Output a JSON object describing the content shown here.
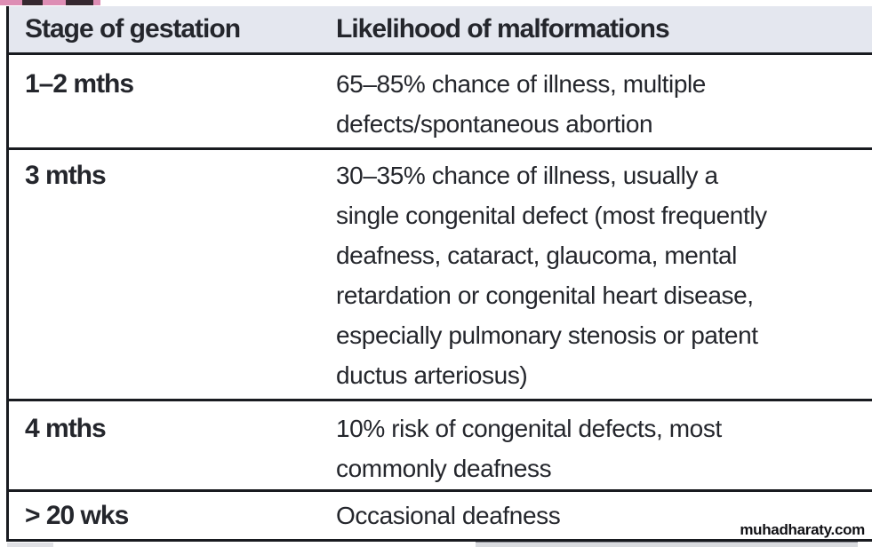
{
  "page": {
    "watermark": "muhadharaty.com"
  },
  "colors": {
    "header_bg": "#e4e7ef",
    "border": "#191b20",
    "text": "#24262c",
    "pink_strip": "#dd8db4",
    "watermark_text": "#101014"
  },
  "table": {
    "columns": [
      {
        "label": "Stage of gestation"
      },
      {
        "label": "Likelihood of malformations"
      }
    ],
    "rows": [
      {
        "stage": "1–2 mths",
        "likelihood": "65–85% chance of illness, multiple\ndefects/spontaneous abortion"
      },
      {
        "stage": "3 mths",
        "likelihood": "30–35% chance of illness, usually a\nsingle congenital defect (most frequently\ndeafness, cataract, glaucoma, mental\nretardation or congenital heart disease,\nespecially pulmonary stenosis or patent\nductus arteriosus)"
      },
      {
        "stage": "4 mths",
        "likelihood": "10% risk of congenital defects, most\ncommonly deafness"
      },
      {
        "stage": "> 20 wks",
        "likelihood": "Occasional deafness"
      }
    ]
  }
}
